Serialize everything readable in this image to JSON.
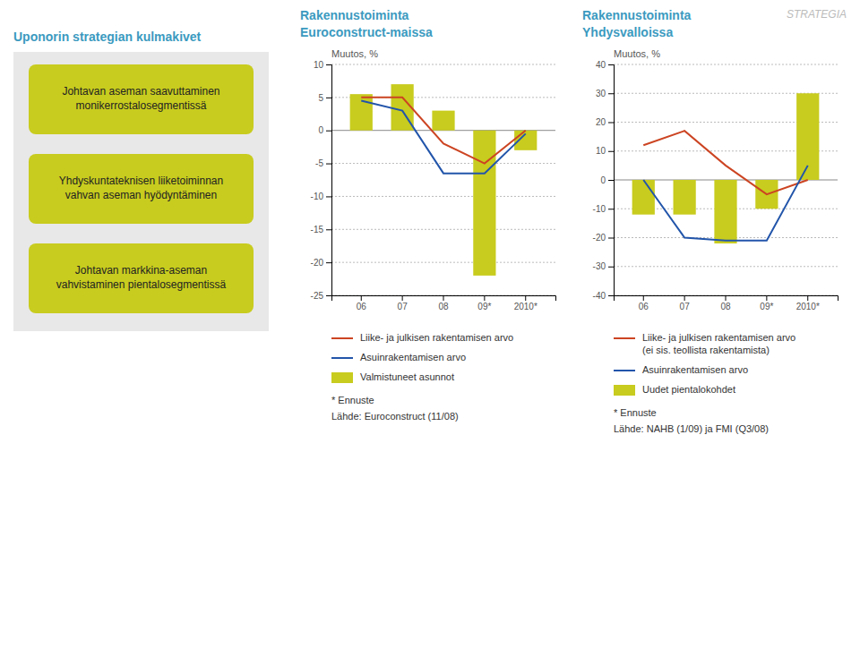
{
  "chart_data": [
    {
      "type": "panel",
      "title": "Uponorin strategian kulmakivet",
      "color": "#c8cc1e",
      "annotations": [
        "Johtavan aseman saavuttaminen\nmonikerrostalosegmentissä",
        "Yhdyskuntateknisen liiketoiminnan\nvahvan aseman hyödyntäminen",
        "Johtavan markkina-aseman\nvahvistaminen pientalosegmentissä"
      ]
    },
    {
      "type": "bar",
      "title": "Rakennustoiminta",
      "subtitle": "Euroconstruct-maissa",
      "y_label": "Muutos, %",
      "categories": [
        "06",
        "07",
        "08",
        "09*",
        "2010*"
      ],
      "series": [
        {
          "name": "Liike- ja julkisen rakentamisen arvo",
          "type": "line",
          "color": "#cc4422",
          "values": [
            5.0,
            5.0,
            -2.0,
            -5.0,
            0.0
          ]
        },
        {
          "name": "Asuinrakentamisen arvo",
          "type": "line",
          "color": "#2255aa",
          "values": [
            4.5,
            3.0,
            -6.5,
            -6.5,
            -0.5
          ]
        },
        {
          "name": "Valmistuneet asunnot",
          "type": "bar",
          "color": "#c8cc1e",
          "values": [
            5.5,
            7.0,
            3.0,
            -22.0,
            -3.0
          ]
        }
      ],
      "ylim": [
        -25,
        10
      ],
      "yticks": [
        10,
        5,
        0,
        -5,
        -10,
        -15,
        -20,
        -25
      ],
      "grid": true,
      "legend": "bottom",
      "annotations": [
        "* Ennuste",
        "Lähde: Euroconstruct (11/08)"
      ]
    },
    {
      "type": "bar",
      "title": "Rakennustoiminta",
      "subtitle": "Yhdysvalloissa",
      "y_label": "Muutos, %",
      "categories": [
        "06",
        "07",
        "08",
        "09*",
        "2010*"
      ],
      "series": [
        {
          "name": "Liike- ja julkisen rakentamisen arvo\n(ei sis. teollista rakentamista)",
          "type": "line",
          "color": "#cc4422",
          "values": [
            12.0,
            17.0,
            5.0,
            -5.0,
            0.0
          ]
        },
        {
          "name": "Asuinrakentamisen arvo",
          "type": "line",
          "color": "#2255aa",
          "values": [
            0.0,
            -20.0,
            -21.0,
            -21.0,
            5.0
          ]
        },
        {
          "name": "Uudet pientalokohdet",
          "type": "bar",
          "color": "#c8cc1e",
          "values": [
            -12.0,
            -12.0,
            -22.0,
            -10.0,
            30.0
          ]
        }
      ],
      "ylim": [
        -40,
        40
      ],
      "yticks": [
        40,
        30,
        20,
        10,
        0,
        -10,
        -20,
        -30,
        -40
      ],
      "grid": true,
      "legend": "bottom",
      "annotations": [
        "* Ennuste",
        "Lähde: NAHB (1/09) ja FMI (Q3/08)"
      ]
    },
    {
      "type": "text",
      "title": "STRATEGIA"
    }
  ]
}
